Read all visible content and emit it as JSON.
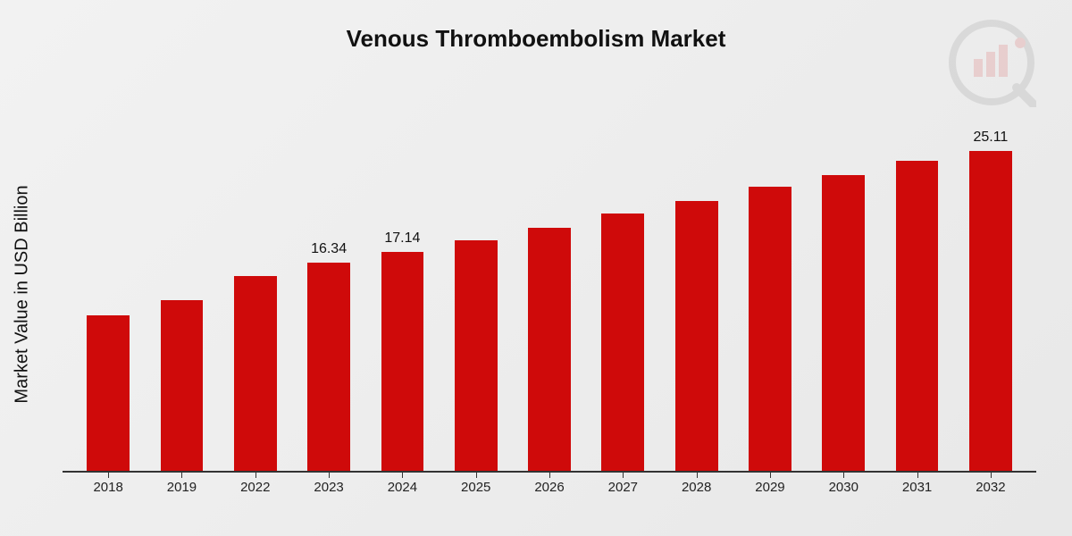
{
  "chart": {
    "type": "bar",
    "title": "Venous Thromboembolism Market",
    "ylabel": "Market Value in USD Billion",
    "title_fontsize": 26,
    "ylabel_fontsize": 20,
    "xtick_fontsize": 15,
    "datalabel_fontsize": 16,
    "background_gradient": [
      "#f2f2f2",
      "#e8e8e8"
    ],
    "axis_color": "#333333",
    "text_color": "#111111",
    "bar_color": "#cf0a0a",
    "bar_width": 0.58,
    "ylim": [
      0,
      30
    ],
    "categories": [
      "2018",
      "2019",
      "2022",
      "2023",
      "2024",
      "2025",
      "2026",
      "2027",
      "2028",
      "2029",
      "2030",
      "2031",
      "2032"
    ],
    "values": [
      12.2,
      13.4,
      15.3,
      16.34,
      17.14,
      18.1,
      19.1,
      20.2,
      21.2,
      22.3,
      23.2,
      24.3,
      25.11
    ],
    "data_labels": {
      "3": "16.34",
      "4": "17.14",
      "12": "25.11"
    }
  },
  "logo": {
    "primary_color": "#cf0a0a",
    "secondary_color": "#555555",
    "opacity": 0.12
  }
}
